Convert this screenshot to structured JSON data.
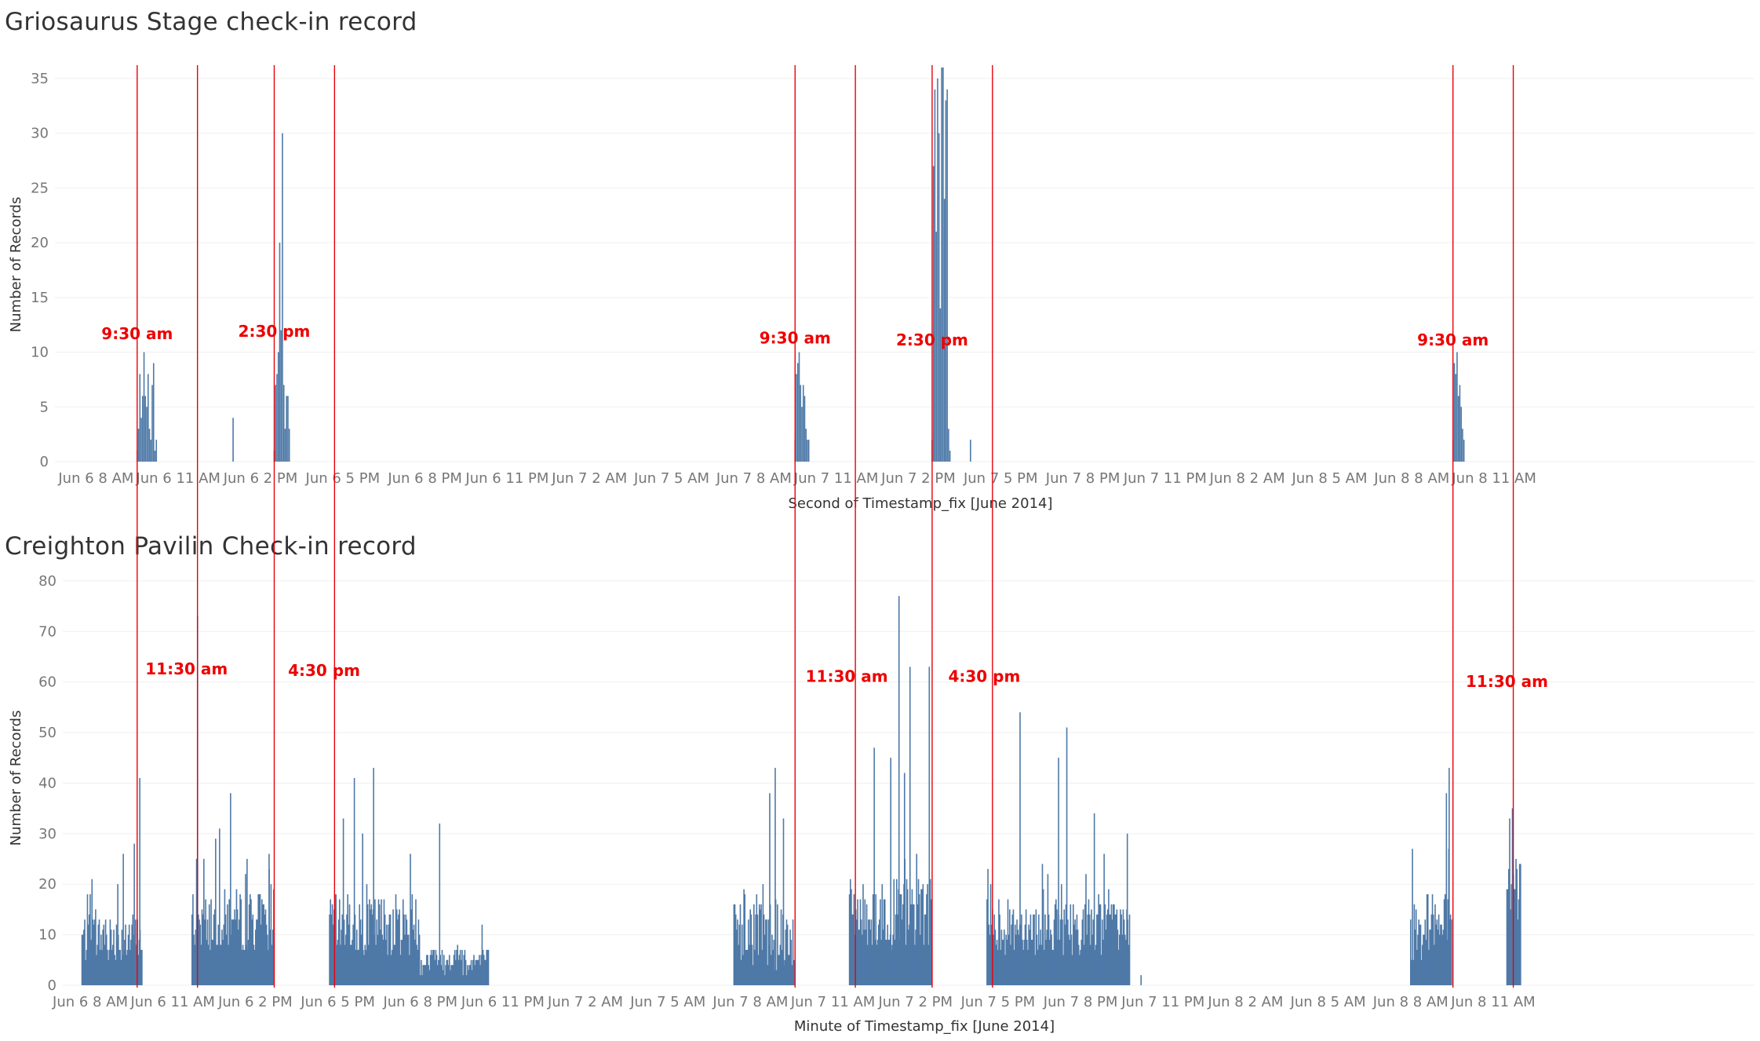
{
  "chart_data": [
    {
      "type": "bar",
      "title": "Griosaurus Stage check-in record",
      "xlabel": "Second of Timestamp_fix [June 2014]",
      "ylabel": "Number of Records",
      "ylim": [
        0,
        36
      ],
      "y_ticks": [
        0,
        5,
        10,
        15,
        20,
        25,
        30,
        35
      ],
      "x_range_hours": [
        6.5,
        68.5
      ],
      "x_ticks": [
        {
          "h": 8,
          "label": "Jun 6 8 AM"
        },
        {
          "h": 11,
          "label": "Jun 6 11 AM"
        },
        {
          "h": 14,
          "label": "Jun 6 2 PM"
        },
        {
          "h": 17,
          "label": "Jun 6 5 PM"
        },
        {
          "h": 20,
          "label": "Jun 6 8 PM"
        },
        {
          "h": 23,
          "label": "Jun 6 11 PM"
        },
        {
          "h": 26,
          "label": "Jun 7 2 AM"
        },
        {
          "h": 29,
          "label": "Jun 7 5 AM"
        },
        {
          "h": 32,
          "label": "Jun 7 8 AM"
        },
        {
          "h": 35,
          "label": "Jun 7 11 AM"
        },
        {
          "h": 38,
          "label": "Jun 7 2 PM"
        },
        {
          "h": 41,
          "label": "Jun 7 5 PM"
        },
        {
          "h": 44,
          "label": "Jun 7 8 PM"
        },
        {
          "h": 47,
          "label": "Jun 7 11 PM"
        },
        {
          "h": 50,
          "label": "Jun 8 2 AM"
        },
        {
          "h": 53,
          "label": "Jun 8 5 AM"
        },
        {
          "h": 56,
          "label": "Jun 8 8 AM"
        },
        {
          "h": 59,
          "label": "Jun 8 11 AM"
        }
      ],
      "grid": true,
      "reference_lines_hours": [
        9.5,
        11.7,
        14.5,
        16.7,
        33.5,
        35.7,
        38.5,
        40.7,
        57.5,
        59.7
      ],
      "annotations": [
        {
          "label": "9:30 am",
          "h": 9.5,
          "y": 11.2
        },
        {
          "label": "2:30 pm",
          "h": 14.5,
          "y": 11.4
        },
        {
          "label": "9:30 am",
          "h": 33.5,
          "y": 10.8
        },
        {
          "label": "2:30 pm",
          "h": 38.5,
          "y": 10.6
        },
        {
          "label": "9:30 am",
          "h": 57.5,
          "y": 10.6
        }
      ],
      "series": [
        {
          "points": [
            [
              9.5,
              1
            ],
            [
              9.55,
              3
            ],
            [
              9.6,
              8
            ],
            [
              9.65,
              4
            ],
            [
              9.7,
              6
            ],
            [
              9.75,
              10
            ],
            [
              9.8,
              6
            ],
            [
              9.85,
              5
            ],
            [
              9.9,
              8
            ],
            [
              9.95,
              3
            ],
            [
              10.0,
              2
            ],
            [
              10.05,
              7
            ],
            [
              10.1,
              9
            ],
            [
              10.15,
              1
            ],
            [
              10.2,
              2
            ],
            [
              13.0,
              4
            ],
            [
              14.5,
              1
            ],
            [
              14.55,
              7
            ],
            [
              14.6,
              8
            ],
            [
              14.65,
              10
            ],
            [
              14.7,
              20
            ],
            [
              14.75,
              12
            ],
            [
              14.8,
              30
            ],
            [
              14.85,
              7
            ],
            [
              14.9,
              3
            ],
            [
              14.95,
              6
            ],
            [
              15.0,
              6
            ],
            [
              15.05,
              3
            ],
            [
              33.5,
              2
            ],
            [
              33.55,
              8
            ],
            [
              33.6,
              9
            ],
            [
              33.65,
              10
            ],
            [
              33.7,
              7
            ],
            [
              33.75,
              5
            ],
            [
              33.8,
              7
            ],
            [
              33.85,
              6
            ],
            [
              33.9,
              3
            ],
            [
              33.95,
              2
            ],
            [
              34.0,
              2
            ],
            [
              38.5,
              2
            ],
            [
              38.55,
              27
            ],
            [
              38.6,
              34
            ],
            [
              38.65,
              21
            ],
            [
              38.7,
              35
            ],
            [
              38.75,
              30
            ],
            [
              38.8,
              14
            ],
            [
              38.85,
              36
            ],
            [
              38.9,
              36
            ],
            [
              38.95,
              24
            ],
            [
              39.0,
              33
            ],
            [
              39.05,
              34
            ],
            [
              39.1,
              3
            ],
            [
              39.15,
              1
            ],
            [
              39.9,
              2
            ],
            [
              57.5,
              2
            ],
            [
              57.55,
              9
            ],
            [
              57.6,
              8
            ],
            [
              57.65,
              10
            ],
            [
              57.7,
              6
            ],
            [
              57.75,
              7
            ],
            [
              57.8,
              5
            ],
            [
              57.85,
              3
            ],
            [
              57.9,
              2
            ]
          ]
        }
      ]
    },
    {
      "type": "bar",
      "title": "Creighton Pavilin Check-in record",
      "xlabel": "Minute of Timestamp_fix [June 2014]",
      "ylabel": "Number of Records",
      "ylim": [
        0,
        82
      ],
      "y_ticks": [
        0,
        10,
        20,
        30,
        40,
        50,
        60,
        70,
        80
      ],
      "x_range_hours": [
        7.0,
        68.5
      ],
      "x_ticks": [
        {
          "h": 8,
          "label": "Jun 6 8 AM"
        },
        {
          "h": 11,
          "label": "Jun 6 11 AM"
        },
        {
          "h": 14,
          "label": "Jun 6 2 PM"
        },
        {
          "h": 17,
          "label": "Jun 6 5 PM"
        },
        {
          "h": 20,
          "label": "Jun 6 8 PM"
        },
        {
          "h": 23,
          "label": "Jun 6 11 PM"
        },
        {
          "h": 26,
          "label": "Jun 7 2 AM"
        },
        {
          "h": 29,
          "label": "Jun 7 5 AM"
        },
        {
          "h": 32,
          "label": "Jun 7 8 AM"
        },
        {
          "h": 35,
          "label": "Jun 7 11 AM"
        },
        {
          "h": 38,
          "label": "Jun 7 2 PM"
        },
        {
          "h": 41,
          "label": "Jun 7 5 PM"
        },
        {
          "h": 44,
          "label": "Jun 7 8 PM"
        },
        {
          "h": 47,
          "label": "Jun 7 11 PM"
        },
        {
          "h": 50,
          "label": "Jun 8 2 AM"
        },
        {
          "h": 53,
          "label": "Jun 8 5 AM"
        },
        {
          "h": 56,
          "label": "Jun 8 8 AM"
        },
        {
          "h": 59,
          "label": "Jun 8 11 AM"
        }
      ],
      "grid": true,
      "annotations": [
        {
          "label": "11:30 am",
          "h": 11.5,
          "y": 61.5
        },
        {
          "label": "4:30 pm",
          "h": 16.5,
          "y": 61.2
        },
        {
          "label": "11:30 am",
          "h": 35.5,
          "y": 60.0
        },
        {
          "label": "4:30 pm",
          "h": 40.5,
          "y": 60.0
        },
        {
          "label": "11:30 am",
          "h": 59.5,
          "y": 59.0
        }
      ],
      "clusters": [
        {
          "start": 7.7,
          "end": 9.9,
          "base": 8,
          "amp": 10,
          "peaks": [
            [
              9.8,
              41
            ],
            [
              9.6,
              28
            ],
            [
              9.2,
              26
            ],
            [
              9.0,
              20
            ]
          ]
        },
        {
          "start": 11.7,
          "end": 14.7,
          "base": 11,
          "amp": 12,
          "peaks": [
            [
              11.9,
              73
            ],
            [
              13.1,
              38
            ],
            [
              12.7,
              31
            ],
            [
              13.7,
              25
            ],
            [
              14.5,
              26
            ]
          ]
        },
        {
          "start": 16.7,
          "end": 20.0,
          "base": 10,
          "amp": 12,
          "peaks": [
            [
              17.6,
              41
            ],
            [
              18.3,
              43
            ],
            [
              17.2,
              33
            ],
            [
              17.9,
              30
            ]
          ]
        },
        {
          "start": 20.0,
          "end": 22.5,
          "base": 4,
          "amp": 6,
          "peaks": [
            [
              20.7,
              32
            ]
          ]
        },
        {
          "start": 31.4,
          "end": 33.6,
          "base": 8,
          "amp": 14,
          "peaks": [
            [
              32.9,
              43
            ],
            [
              32.7,
              38
            ],
            [
              33.2,
              33
            ]
          ]
        },
        {
          "start": 35.6,
          "end": 38.6,
          "base": 12,
          "amp": 14,
          "peaks": [
            [
              37.4,
              77
            ],
            [
              37.8,
              63
            ],
            [
              38.5,
              63
            ],
            [
              36.5,
              47
            ],
            [
              37.1,
              45
            ],
            [
              37.6,
              42
            ]
          ]
        },
        {
          "start": 40.6,
          "end": 45.8,
          "base": 10,
          "amp": 11,
          "peaks": [
            [
              41.8,
              54
            ],
            [
              43.5,
              51
            ],
            [
              43.2,
              45
            ],
            [
              44.5,
              34
            ],
            [
              45.7,
              30
            ]
          ]
        },
        {
          "start": 56.0,
          "end": 57.5,
          "base": 9,
          "amp": 14,
          "peaks": [
            [
              57.4,
              43
            ],
            [
              57.3,
              38
            ]
          ]
        },
        {
          "start": 59.5,
          "end": 60.0,
          "base": 15,
          "amp": 14,
          "peaks": [
            [
              59.7,
              35
            ],
            [
              59.6,
              33
            ]
          ]
        }
      ],
      "isolated": [
        [
          46.2,
          2
        ]
      ]
    }
  ]
}
